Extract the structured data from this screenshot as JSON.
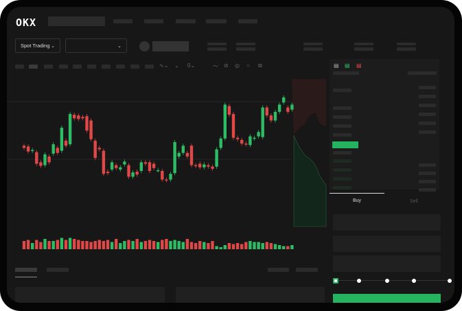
{
  "header": {
    "logo": "OKX",
    "market_button": "Spot Trading",
    "chevron": "⌄"
  },
  "trade": {
    "buy_label": "Buy",
    "sell_label": "Sell",
    "leverage_steps": 5,
    "leverage_selected": 0
  },
  "colors": {
    "up": "#2ebd65",
    "down": "#e04848",
    "accent": "#25b360",
    "background": "#171717"
  },
  "chart_data": {
    "type": "candlestick",
    "candles": [
      [
        55,
        52
      ],
      [
        54,
        47
      ],
      [
        48,
        49
      ],
      [
        46,
        30
      ],
      [
        32,
        27
      ],
      [
        28,
        43
      ],
      [
        40,
        32
      ],
      [
        44,
        57
      ],
      [
        52,
        45
      ],
      [
        48,
        80
      ],
      [
        62,
        55
      ],
      [
        57,
        99
      ],
      [
        98,
        93
      ],
      [
        97,
        92
      ],
      [
        95,
        93
      ],
      [
        96,
        76
      ],
      [
        90,
        64
      ],
      [
        62,
        38
      ],
      [
        52,
        50
      ],
      [
        48,
        16
      ],
      [
        19,
        17
      ],
      [
        22,
        32
      ],
      [
        28,
        24
      ],
      [
        22,
        25
      ],
      [
        29,
        33
      ],
      [
        28,
        12
      ],
      [
        12,
        18
      ],
      [
        19,
        15
      ],
      [
        20,
        32
      ],
      [
        32,
        30
      ],
      [
        32,
        20
      ],
      [
        30,
        24
      ],
      [
        21,
        21
      ],
      [
        20,
        8
      ],
      [
        8,
        7
      ],
      [
        8,
        16
      ],
      [
        17,
        60
      ],
      [
        40,
        45
      ],
      [
        45,
        55
      ],
      [
        45,
        40
      ],
      [
        55,
        28
      ],
      [
        28,
        27
      ],
      [
        30,
        25
      ],
      [
        25,
        29
      ],
      [
        28,
        26
      ],
      [
        26,
        23
      ],
      [
        26,
        50
      ],
      [
        52,
        65
      ],
      [
        65,
        112
      ],
      [
        110,
        98
      ],
      [
        99,
        66
      ],
      [
        66,
        64
      ],
      [
        63,
        58
      ],
      [
        58,
        57
      ],
      [
        56,
        68
      ],
      [
        65,
        66
      ],
      [
        68,
        74
      ],
      [
        67,
        108
      ],
      [
        108,
        97
      ],
      [
        97,
        90
      ],
      [
        90,
        102
      ],
      [
        102,
        112
      ],
      [
        115,
        122
      ],
      [
        108,
        102
      ],
      [
        105,
        112
      ]
    ],
    "volume": [
      8,
      9,
      6,
      9,
      7,
      10,
      8,
      8,
      9,
      11,
      9,
      11,
      10,
      9,
      8,
      8,
      7,
      8,
      9,
      8,
      9,
      7,
      10,
      6,
      8,
      9,
      8,
      10,
      7,
      8,
      9,
      8,
      7,
      9,
      10,
      8,
      9,
      8,
      7,
      10,
      7,
      6,
      8,
      7,
      6,
      8,
      3,
      2,
      4,
      6,
      5,
      6,
      5,
      7,
      8,
      7,
      7,
      6,
      7,
      6,
      5,
      4,
      3,
      3,
      4
    ]
  }
}
